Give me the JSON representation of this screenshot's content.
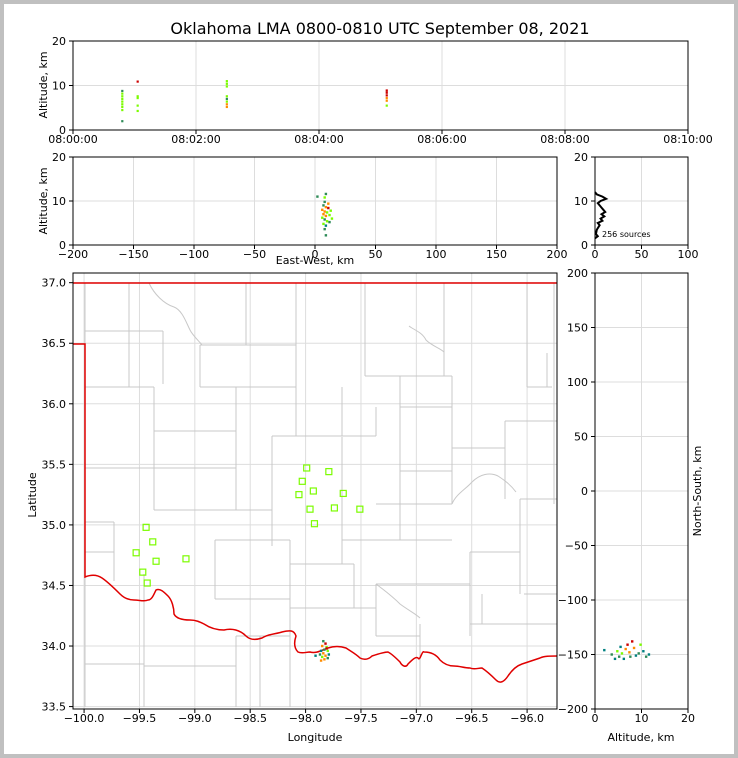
{
  "chart_data": {
    "title": "Oklahoma LMA 0800-0810 UTC September 08, 2021",
    "colors": {
      "green": "#7cfc00",
      "dark_green": "#2e8b57",
      "orange": "#ff8c00",
      "red": "#cc0000",
      "teal": "#008080",
      "state_border": "#e00000",
      "county": "#c8c8c8",
      "grid": "#dddddd"
    },
    "panels": [
      {
        "id": "time-height",
        "type": "scatter",
        "ylabel": "Altitude, km",
        "ylim": [
          0,
          20
        ],
        "yticks": [
          "0",
          "10",
          "20"
        ],
        "xticks": [
          "08:00:00",
          "08:02:00",
          "08:04:00",
          "08:06:00",
          "08:08:00",
          "08:10:00"
        ],
        "x_minutes_range": [
          0,
          10
        ],
        "points": [
          {
            "t": 0.8,
            "z": 2.0,
            "c": "dark_green"
          },
          {
            "t": 0.8,
            "z": 4.5,
            "c": "green"
          },
          {
            "t": 0.8,
            "z": 5.2,
            "c": "green"
          },
          {
            "t": 0.8,
            "z": 5.8,
            "c": "green"
          },
          {
            "t": 0.8,
            "z": 6.4,
            "c": "green"
          },
          {
            "t": 0.8,
            "z": 7.0,
            "c": "green"
          },
          {
            "t": 0.8,
            "z": 7.6,
            "c": "green"
          },
          {
            "t": 0.8,
            "z": 8.2,
            "c": "green"
          },
          {
            "t": 0.8,
            "z": 8.8,
            "c": "dark_green"
          },
          {
            "t": 1.05,
            "z": 4.3,
            "c": "green"
          },
          {
            "t": 1.05,
            "z": 5.5,
            "c": "green"
          },
          {
            "t": 1.05,
            "z": 7.2,
            "c": "green"
          },
          {
            "t": 1.05,
            "z": 7.6,
            "c": "green"
          },
          {
            "t": 1.05,
            "z": 10.9,
            "c": "red"
          },
          {
            "t": 2.5,
            "z": 5.2,
            "c": "orange"
          },
          {
            "t": 2.5,
            "z": 5.8,
            "c": "orange"
          },
          {
            "t": 2.5,
            "z": 6.4,
            "c": "green"
          },
          {
            "t": 2.5,
            "z": 7.0,
            "c": "dark_green"
          },
          {
            "t": 2.5,
            "z": 7.6,
            "c": "green"
          },
          {
            "t": 2.5,
            "z": 9.8,
            "c": "green"
          },
          {
            "t": 2.5,
            "z": 10.4,
            "c": "green"
          },
          {
            "t": 2.5,
            "z": 11.0,
            "c": "green"
          },
          {
            "t": 5.1,
            "z": 5.5,
            "c": "green"
          },
          {
            "t": 5.1,
            "z": 6.6,
            "c": "orange"
          },
          {
            "t": 5.1,
            "z": 7.2,
            "c": "orange"
          },
          {
            "t": 5.1,
            "z": 7.8,
            "c": "red"
          },
          {
            "t": 5.1,
            "z": 8.4,
            "c": "red"
          },
          {
            "t": 5.1,
            "z": 8.9,
            "c": "red"
          }
        ]
      },
      {
        "id": "ew-height",
        "type": "scatter",
        "xlabel": "East-West, km",
        "ylabel": "Altitude, km",
        "xlim": [
          -200,
          200
        ],
        "ylim": [
          0,
          20
        ],
        "xticks": [
          "−200",
          "−150",
          "−100",
          "−50",
          "0",
          "50",
          "100",
          "150",
          "200"
        ],
        "yticks": [
          "0",
          "10",
          "20"
        ],
        "points": [
          {
            "x": 2,
            "z": 11.0,
            "c": "dark_green"
          },
          {
            "x": 8,
            "z": 10.8,
            "c": "green"
          },
          {
            "x": 9,
            "z": 11.6,
            "c": "dark_green"
          },
          {
            "x": 8,
            "z": 9.8,
            "c": "dark_green"
          },
          {
            "x": 7,
            "z": 9.0,
            "c": "dark_green"
          },
          {
            "x": 9,
            "z": 8.6,
            "c": "orange"
          },
          {
            "x": 11,
            "z": 8.4,
            "c": "red"
          },
          {
            "x": 6,
            "z": 8.0,
            "c": "orange"
          },
          {
            "x": 8,
            "z": 7.6,
            "c": "orange"
          },
          {
            "x": 10,
            "z": 7.4,
            "c": "green"
          },
          {
            "x": 7,
            "z": 7.0,
            "c": "orange"
          },
          {
            "x": 9,
            "z": 6.6,
            "c": "orange"
          },
          {
            "x": 12,
            "z": 6.8,
            "c": "green"
          },
          {
            "x": 13,
            "z": 7.8,
            "c": "green"
          },
          {
            "x": 6,
            "z": 6.2,
            "c": "green"
          },
          {
            "x": 8,
            "z": 5.8,
            "c": "dark_green"
          },
          {
            "x": 10,
            "z": 5.4,
            "c": "green"
          },
          {
            "x": 12,
            "z": 5.2,
            "c": "dark_green"
          },
          {
            "x": 7,
            "z": 4.8,
            "c": "green"
          },
          {
            "x": 9,
            "z": 4.4,
            "c": "teal"
          },
          {
            "x": 8,
            "z": 3.6,
            "c": "dark_green"
          },
          {
            "x": 9,
            "z": 2.2,
            "c": "dark_green"
          },
          {
            "x": 14,
            "z": 6.0,
            "c": "green"
          },
          {
            "x": 11,
            "z": 9.4,
            "c": "orange"
          }
        ]
      },
      {
        "id": "altitude-histogram",
        "type": "line",
        "xlim": [
          0,
          100
        ],
        "ylim": [
          0,
          20
        ],
        "xticks": [
          "0",
          "50",
          "100"
        ],
        "yticks": [
          "0",
          "10",
          "20"
        ],
        "annotation": "256 sources",
        "profile": [
          {
            "z": 1.5,
            "n": 0
          },
          {
            "z": 2.0,
            "n": 3
          },
          {
            "z": 2.5,
            "n": 1
          },
          {
            "z": 3.5,
            "n": 2
          },
          {
            "z": 4.5,
            "n": 5
          },
          {
            "z": 5.0,
            "n": 3
          },
          {
            "z": 5.5,
            "n": 8
          },
          {
            "z": 6.0,
            "n": 6
          },
          {
            "z": 6.5,
            "n": 10
          },
          {
            "z": 7.0,
            "n": 7
          },
          {
            "z": 7.5,
            "n": 11
          },
          {
            "z": 8.0,
            "n": 9
          },
          {
            "z": 8.5,
            "n": 7
          },
          {
            "z": 9.0,
            "n": 5
          },
          {
            "z": 9.5,
            "n": 3
          },
          {
            "z": 10.0,
            "n": 6
          },
          {
            "z": 10.5,
            "n": 12
          },
          {
            "z": 11.0,
            "n": 8
          },
          {
            "z": 11.5,
            "n": 2
          },
          {
            "z": 12.0,
            "n": 0
          }
        ]
      },
      {
        "id": "plan-view",
        "type": "scatter",
        "xlabel": "Longitude",
        "ylabel": "Latitude",
        "xlim": [
          -100.1,
          -95.73
        ],
        "ylim": [
          33.48,
          37.08
        ],
        "xticks": [
          "−100.0",
          "−99.5",
          "−99.0",
          "−98.5",
          "−98.0",
          "−97.5",
          "−97.0",
          "−96.5",
          "−96.0"
        ],
        "yticks": [
          "33.5",
          "34.0",
          "34.5",
          "35.0",
          "35.5",
          "36.0",
          "36.5",
          "37.0"
        ],
        "stations": [
          {
            "lon": -97.99,
            "lat": 35.47
          },
          {
            "lon": -97.79,
            "lat": 35.44
          },
          {
            "lon": -98.03,
            "lat": 35.36
          },
          {
            "lon": -97.93,
            "lat": 35.28
          },
          {
            "lon": -98.06,
            "lat": 35.25
          },
          {
            "lon": -97.66,
            "lat": 35.26
          },
          {
            "lon": -97.96,
            "lat": 35.13
          },
          {
            "lon": -97.74,
            "lat": 35.14
          },
          {
            "lon": -97.51,
            "lat": 35.13
          },
          {
            "lon": -97.92,
            "lat": 35.01
          },
          {
            "lon": -99.44,
            "lat": 34.98
          },
          {
            "lon": -99.38,
            "lat": 34.86
          },
          {
            "lon": -99.53,
            "lat": 34.77
          },
          {
            "lon": -99.35,
            "lat": 34.7
          },
          {
            "lon": -99.08,
            "lat": 34.72
          },
          {
            "lon": -99.47,
            "lat": 34.61
          },
          {
            "lon": -99.43,
            "lat": 34.52
          }
        ],
        "points": [
          {
            "lon": -97.84,
            "lat": 34.04,
            "c": "dark_green"
          },
          {
            "lon": -97.82,
            "lat": 34.02,
            "c": "red"
          },
          {
            "lon": -97.85,
            "lat": 34.0,
            "c": "orange"
          },
          {
            "lon": -97.81,
            "lat": 33.99,
            "c": "green"
          },
          {
            "lon": -97.83,
            "lat": 33.97,
            "c": "dark_green"
          },
          {
            "lon": -97.86,
            "lat": 33.96,
            "c": "teal"
          },
          {
            "lon": -97.8,
            "lat": 33.96,
            "c": "green"
          },
          {
            "lon": -97.84,
            "lat": 33.94,
            "c": "orange"
          },
          {
            "lon": -97.87,
            "lat": 33.93,
            "c": "dark_green"
          },
          {
            "lon": -97.82,
            "lat": 33.92,
            "c": "orange"
          },
          {
            "lon": -97.79,
            "lat": 33.93,
            "c": "teal"
          },
          {
            "lon": -97.85,
            "lat": 33.91,
            "c": "green"
          },
          {
            "lon": -97.91,
            "lat": 33.92,
            "c": "teal"
          },
          {
            "lon": -97.83,
            "lat": 33.89,
            "c": "orange"
          },
          {
            "lon": -97.86,
            "lat": 33.88,
            "c": "orange"
          },
          {
            "lon": -97.8,
            "lat": 33.9,
            "c": "dark_green"
          },
          {
            "lon": -97.81,
            "lat": 33.98,
            "c": "red"
          }
        ]
      },
      {
        "id": "ns-height",
        "type": "scatter",
        "xlabel": "Altitude, km",
        "ylabel": "North-South, km",
        "xlim": [
          0,
          20
        ],
        "ylim": [
          -200,
          200
        ],
        "xticks": [
          "0",
          "10",
          "20"
        ],
        "yticks": [
          "−200",
          "−150",
          "−100",
          "−50",
          "0",
          "50",
          "100",
          "150",
          "200"
        ],
        "points": [
          {
            "z": 2.0,
            "y": -146,
            "c": "teal"
          },
          {
            "z": 3.6,
            "y": -150,
            "c": "dark_green"
          },
          {
            "z": 4.3,
            "y": -154,
            "c": "teal"
          },
          {
            "z": 4.8,
            "y": -147,
            "c": "green"
          },
          {
            "z": 5.2,
            "y": -152,
            "c": "dark_green"
          },
          {
            "z": 5.5,
            "y": -143,
            "c": "teal"
          },
          {
            "z": 5.8,
            "y": -149,
            "c": "green"
          },
          {
            "z": 6.2,
            "y": -154,
            "c": "teal"
          },
          {
            "z": 6.6,
            "y": -145,
            "c": "orange"
          },
          {
            "z": 7.0,
            "y": -141,
            "c": "red"
          },
          {
            "z": 7.4,
            "y": -148,
            "c": "orange"
          },
          {
            "z": 7.6,
            "y": -152,
            "c": "dark_green"
          },
          {
            "z": 8.0,
            "y": -138,
            "c": "red"
          },
          {
            "z": 8.4,
            "y": -144,
            "c": "orange"
          },
          {
            "z": 8.8,
            "y": -151,
            "c": "teal"
          },
          {
            "z": 9.4,
            "y": -149,
            "c": "dark_green"
          },
          {
            "z": 9.8,
            "y": -141,
            "c": "green"
          },
          {
            "z": 10.4,
            "y": -147,
            "c": "teal"
          },
          {
            "z": 11.0,
            "y": -152,
            "c": "dark_green"
          },
          {
            "z": 11.6,
            "y": -150,
            "c": "teal"
          }
        ]
      }
    ]
  }
}
